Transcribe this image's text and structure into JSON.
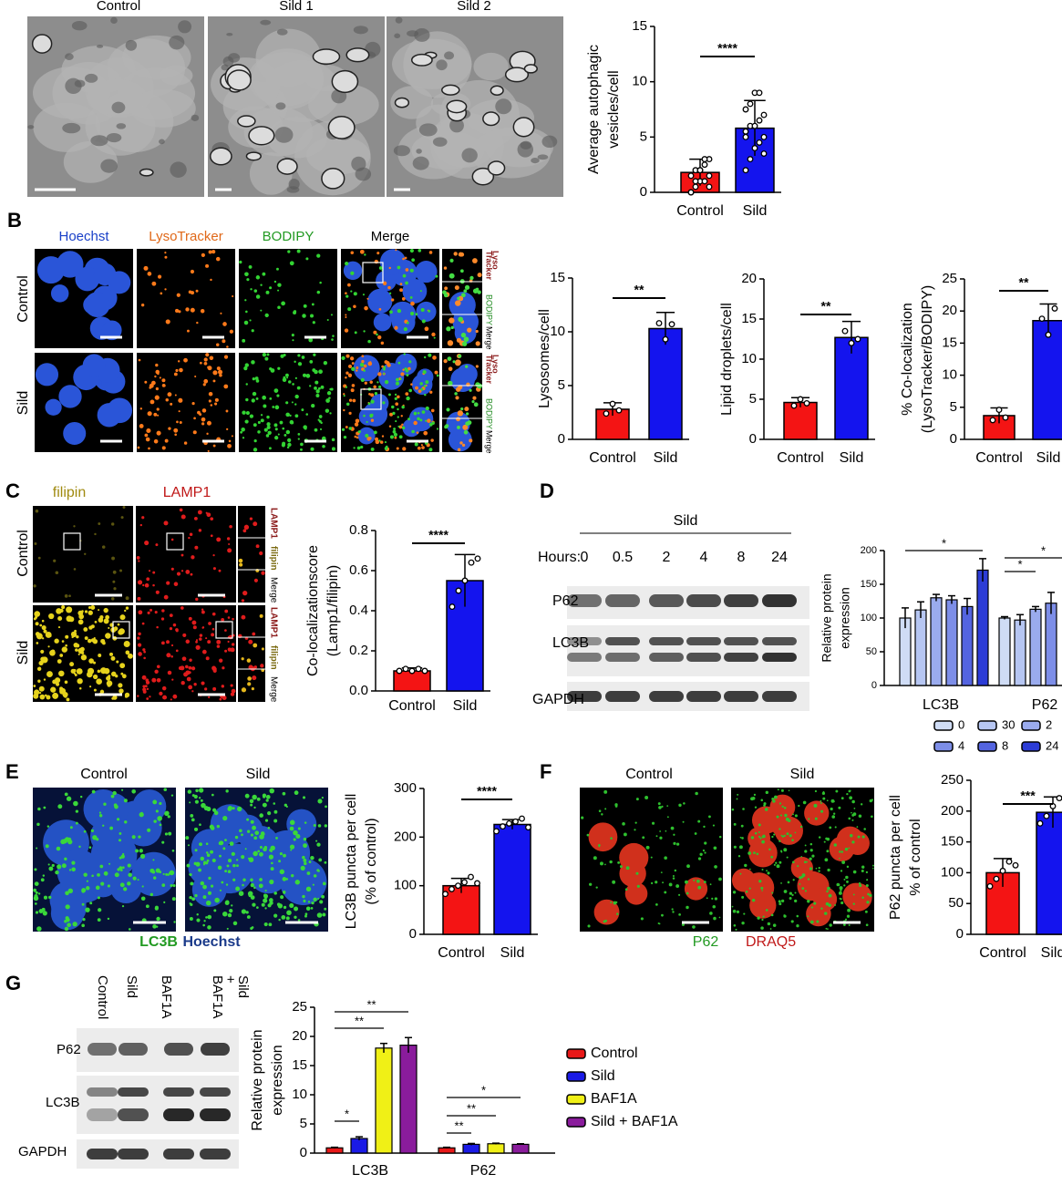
{
  "panel_labels": {
    "b": "B",
    "c": "C",
    "d": "D",
    "e": "E",
    "f": "F",
    "g": "G"
  },
  "panel_a": {
    "image_titles": [
      "Control",
      "Sild 1",
      "Sild 2"
    ]
  },
  "panel_b": {
    "channels": [
      "Hoechst",
      "LysoTracker",
      "BODIPY",
      "Merge"
    ],
    "rows": [
      "Control",
      "Sild"
    ],
    "zoom_labels": [
      "Lyso",
      "Tracker",
      "BODIPY",
      "Merge"
    ]
  },
  "panel_c": {
    "channels": [
      "filipin",
      "LAMP1"
    ],
    "rows": [
      "Control",
      "Sild"
    ],
    "zoom_labels": [
      "LAMP1",
      "filipin",
      "Merge"
    ]
  },
  "panel_d": {
    "treatment": "Sild",
    "hours_label": "Hours:",
    "hours": [
      "0",
      "0.5",
      "2",
      "4",
      "8",
      "24"
    ],
    "rows": [
      "P62",
      "LC3B",
      "GAPDH"
    ]
  },
  "panel_e": {
    "titles": [
      "Control",
      "Sild"
    ],
    "caption": [
      "LC3B",
      "Hoechst"
    ]
  },
  "panel_f": {
    "titles": [
      "Control",
      "Sild"
    ],
    "caption": [
      "P62",
      "DRAQ5"
    ]
  },
  "panel_g": {
    "lanes": [
      "Control",
      "Sild",
      "BAF1A",
      [
        "BAF1A",
        "+",
        "Sild"
      ]
    ],
    "rows": [
      "P62",
      "LC3B",
      "GAPDH"
    ]
  },
  "chart_data": [
    {
      "type": "bar",
      "ylabel": [
        "Average autophagic",
        "vesicles/cell"
      ],
      "categories": [
        "Control",
        "Sild"
      ],
      "values": [
        1.8,
        5.8
      ],
      "errors": [
        1.2,
        2.5
      ],
      "colors": [
        "#f41414",
        "#1414ee"
      ],
      "points": [
        [
          0,
          0.5,
          1,
          1,
          1.5,
          1.5,
          2,
          2,
          2.5,
          3,
          0,
          1,
          2,
          3,
          0.5
        ],
        [
          2,
          3,
          4,
          4.5,
          5,
          5,
          6,
          6,
          6.5,
          7,
          7.5,
          8,
          9,
          9,
          3.5,
          5.5
        ]
      ],
      "ylim": [
        0,
        15
      ],
      "yticks": [
        0,
        5,
        10,
        15
      ],
      "significance": "****"
    },
    {
      "type": "bar",
      "ylabel": [
        "Lysosomes/cell"
      ],
      "categories": [
        "Control",
        "Sild"
      ],
      "values": [
        2.8,
        10.3
      ],
      "errors": [
        0.6,
        1.5
      ],
      "colors": [
        "#f41414",
        "#1414ee"
      ],
      "points": [
        [
          2.4,
          3.3,
          2.7
        ],
        [
          10.8,
          9.3,
          10.7
        ]
      ],
      "ylim": [
        0,
        15
      ],
      "yticks": [
        0,
        5,
        10,
        15
      ],
      "significance": "**"
    },
    {
      "type": "bar",
      "ylabel": [
        "Lipid droplets/cell"
      ],
      "categories": [
        "Control",
        "Sild"
      ],
      "values": [
        4.6,
        12.7
      ],
      "errors": [
        0.6,
        2.0
      ],
      "colors": [
        "#f41414",
        "#1414ee"
      ],
      "points": [
        [
          4.2,
          5,
          4.5
        ],
        [
          13.5,
          12,
          12.5
        ]
      ],
      "ylim": [
        0,
        20
      ],
      "yticks": [
        0,
        5,
        10,
        15,
        20
      ],
      "significance": "**"
    },
    {
      "type": "bar",
      "ylabel": [
        "% Co-localization",
        "(LysoTracker/BODIPY)"
      ],
      "categories": [
        "Control",
        "Sild"
      ],
      "values": [
        3.7,
        18.5
      ],
      "errors": [
        1.2,
        2.6
      ],
      "colors": [
        "#f41414",
        "#1414ee"
      ],
      "points": [
        [
          3,
          4.6,
          3.4
        ],
        [
          18.8,
          16.3,
          20.4
        ]
      ],
      "ylim": [
        0,
        25
      ],
      "yticks": [
        0,
        5,
        10,
        15,
        20,
        25
      ],
      "significance": "**"
    },
    {
      "type": "bar",
      "ylabel": [
        "Co-localizationscore",
        "(Lamp1/filipin)"
      ],
      "categories": [
        "Control",
        "Sild"
      ],
      "values": [
        0.1,
        0.55
      ],
      "errors": [
        0.015,
        0.13
      ],
      "colors": [
        "#f41414",
        "#1414ee"
      ],
      "points": [
        [
          0.1,
          0.11,
          0.1,
          0.11,
          0.1
        ],
        [
          0.42,
          0.5,
          0.55,
          0.64,
          0.66
        ]
      ],
      "ylim": [
        0,
        0.8
      ],
      "yticks": [
        {
          "value": 0,
          "label": "0.0"
        },
        0.2,
        0.4,
        0.6,
        0.8
      ],
      "significance": "****"
    },
    {
      "type": "grouped_bar",
      "ylabel": [
        "Relative protein",
        "expression"
      ],
      "categories": [
        "LC3B",
        "P62"
      ],
      "series": [
        {
          "name": "0",
          "color": "#cfdcf5",
          "values": [
            100,
            100
          ],
          "errors": [
            15,
            2
          ]
        },
        {
          "name": "30",
          "color": "#b6c6f2",
          "values": [
            112,
            97
          ],
          "errors": [
            12,
            8
          ]
        },
        {
          "name": "2",
          "color": "#9aabee",
          "values": [
            130,
            113
          ],
          "errors": [
            5,
            4
          ]
        },
        {
          "name": "4",
          "color": "#7d8ee8",
          "values": [
            127,
            122
          ],
          "errors": [
            6,
            16
          ]
        },
        {
          "name": "8",
          "color": "#5464e0",
          "values": [
            117,
            null
          ],
          "errors": [
            12,
            null
          ]
        },
        {
          "name": "24",
          "color": "#2c3cd6",
          "values": [
            171,
            null
          ],
          "errors": [
            17,
            null
          ]
        }
      ],
      "ylim": [
        0,
        200
      ],
      "yticks": [
        0,
        50,
        100,
        150,
        200
      ],
      "significance": [
        "*",
        "*",
        "*"
      ]
    },
    {
      "type": "bar",
      "ylabel": [
        "LC3B puncta per cell",
        "(% of control)"
      ],
      "categories": [
        "Control",
        "Sild"
      ],
      "values": [
        100,
        226
      ],
      "errors": [
        15,
        10
      ],
      "colors": [
        "#f41414",
        "#1414ee"
      ],
      "points": [
        [
          83,
          93,
          100,
          107,
          118,
          105
        ],
        [
          212,
          222,
          228,
          232,
          238,
          220
        ]
      ],
      "ylim": [
        0,
        300
      ],
      "yticks": [
        0,
        100,
        200,
        300
      ],
      "significance": "****"
    },
    {
      "type": "bar",
      "ylabel": [
        "P62 puncta per cell",
        "% of control"
      ],
      "categories": [
        "Control",
        "Sild"
      ],
      "values": [
        100,
        198
      ],
      "errors": [
        23,
        25
      ],
      "colors": [
        "#f41414",
        "#1414ee"
      ],
      "points": [
        [
          78,
          90,
          103,
          118,
          112
        ],
        [
          180,
          192,
          208,
          221,
          206
        ]
      ],
      "ylim": [
        0,
        250
      ],
      "yticks": [
        0,
        50,
        100,
        150,
        200,
        250
      ],
      "significance": "***"
    },
    {
      "type": "grouped_bar",
      "ylabel": [
        "Relative protein",
        "expression"
      ],
      "categories": [
        "LC3B",
        "P62"
      ],
      "series": [
        {
          "name": "Control",
          "color": "#e81818",
          "values": [
            0.9,
            0.9
          ],
          "errors": [
            0.1,
            0.1
          ]
        },
        {
          "name": "Sild",
          "color": "#1a1ae6",
          "values": [
            2.5,
            1.5
          ],
          "errors": [
            0.3,
            0.15
          ]
        },
        {
          "name": "BAF1A",
          "color": "#f0f016",
          "values": [
            18,
            1.6
          ],
          "errors": [
            0.8,
            0.1
          ]
        },
        {
          "name": "Sild + BAF1A",
          "color": "#8a1c9c",
          "values": [
            18.5,
            1.5
          ],
          "errors": [
            1.3,
            0.1
          ]
        }
      ],
      "ylim": [
        0,
        25
      ],
      "yticks": [
        0,
        5,
        10,
        15,
        20,
        25
      ],
      "significance": [
        "*",
        "**",
        "**",
        "**",
        "**",
        "*"
      ]
    }
  ]
}
